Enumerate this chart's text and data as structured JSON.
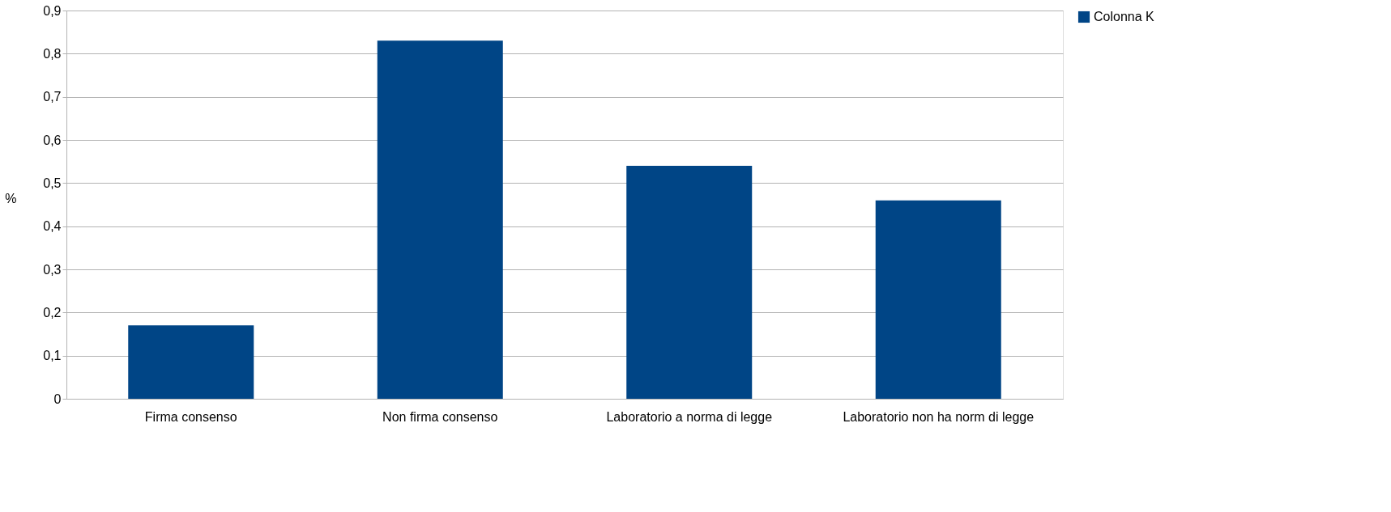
{
  "chart_data": {
    "type": "bar",
    "categories": [
      "Firma consenso",
      "Non firma consenso",
      "Laboratorio a norma di legge",
      "Laboratorio non ha norm di legge"
    ],
    "series": [
      {
        "name": "Colonna K",
        "color": "#004586",
        "values": [
          0.17,
          0.83,
          0.54,
          0.46
        ]
      }
    ],
    "ylabel": "%",
    "ylim": [
      0,
      0.9
    ],
    "yticks": [
      {
        "value": 0,
        "label": "0"
      },
      {
        "value": 0.1,
        "label": "0,1"
      },
      {
        "value": 0.2,
        "label": "0,2"
      },
      {
        "value": 0.3,
        "label": "0,3"
      },
      {
        "value": 0.4,
        "label": "0,4"
      },
      {
        "value": 0.5,
        "label": "0,5"
      },
      {
        "value": 0.6,
        "label": "0,6"
      },
      {
        "value": 0.7,
        "label": "0,7"
      },
      {
        "value": 0.8,
        "label": "0,8"
      },
      {
        "value": 0.9,
        "label": "0,9"
      }
    ],
    "grid": "y",
    "legend": "right"
  }
}
